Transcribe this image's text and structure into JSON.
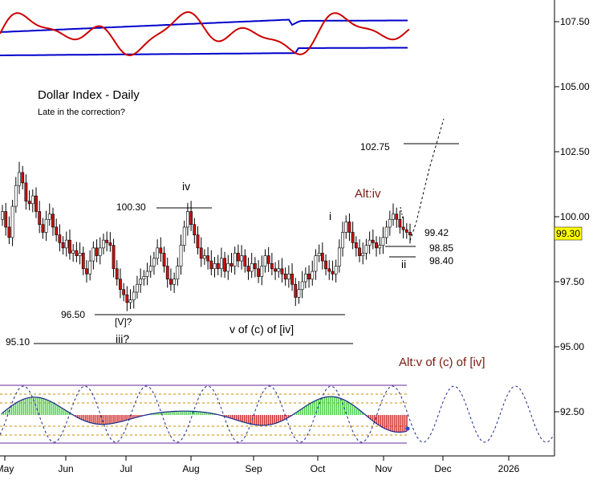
{
  "chart_data": {
    "type": "candlestick",
    "title": "Dollar Index - Daily",
    "subtitle": "Late in the correction?",
    "y_axis": {
      "ticks": [
        92.5,
        95.0,
        97.5,
        100.0,
        102.5,
        105.0,
        107.5
      ],
      "tick_labels": [
        "92.50",
        "95.00",
        "97.50",
        "100.00",
        "102.50",
        "105.00",
        "107.50"
      ],
      "position": "right"
    },
    "x_axis": {
      "tick_labels": [
        "May",
        "Jun",
        "Jul",
        "Aug",
        "Sep",
        "Oct",
        "Nov",
        "Dec",
        "2026"
      ]
    },
    "last_price": {
      "value": 99.3,
      "label": "99.30",
      "color": "#ffff00"
    },
    "closes": [
      100.2,
      99.6,
      99.2,
      100.4,
      101.2,
      101.7,
      101.3,
      100.6,
      100.5,
      100.8,
      100.2,
      99.7,
      99.4,
      99.9,
      100.1,
      99.6,
      99.3,
      99.0,
      98.8,
      99.1,
      98.6,
      98.7,
      98.5,
      98.6,
      98.0,
      97.8,
      98.3,
      98.8,
      98.5,
      98.8,
      99.1,
      99.0,
      98.9,
      98.0,
      97.6,
      97.2,
      97.0,
      96.7,
      96.8,
      97.1,
      97.4,
      97.6,
      97.7,
      97.9,
      98.1,
      98.4,
      98.8,
      98.6,
      98.1,
      97.6,
      97.4,
      97.6,
      98.1,
      98.9,
      99.6,
      100.2,
      99.7,
      99.3,
      98.8,
      98.4,
      98.5,
      98.3,
      98.0,
      98.2,
      98.0,
      98.4,
      97.9,
      98.2,
      98.1,
      98.6,
      98.3,
      98.5,
      98.1,
      97.9,
      98.2,
      98.0,
      97.7,
      98.1,
      98.5,
      98.2,
      98.0,
      97.9,
      98.0,
      97.8,
      97.6,
      97.8,
      97.4,
      96.9,
      97.2,
      97.5,
      97.8,
      97.6,
      97.9,
      98.5,
      98.6,
      98.3,
      98.0,
      97.9,
      97.8,
      98.1,
      98.8,
      99.4,
      99.8,
      99.4,
      99.0,
      98.8,
      98.5,
      98.6,
      98.9,
      99.1,
      99.0,
      98.8,
      98.9,
      99.2,
      99.6,
      99.9,
      100.1,
      99.9,
      99.6,
      99.5,
      99.4,
      99.3
    ],
    "indicator_top": {
      "bands": {
        "upper_color": "#0000cc",
        "lower_color": "#0000cc"
      },
      "oscillator_color": "#cc0000"
    },
    "indicator_bottom": {
      "histogram_pos_color": "#44cc44",
      "histogram_neg_color": "#cc2222",
      "cycle_color": "#000066"
    },
    "annotations": {
      "wave_iv": "iv",
      "level_100_30": "100.30",
      "level_96_50": "96.50",
      "level_95_10": "95.10",
      "wave_v_iii": "[V]?",
      "wave_iii": "iii?",
      "wave_v_c_iv": "v of (c) of [iv]",
      "wave_i": "i",
      "wave_ii": "ii",
      "alt_iv": "Alt:iv",
      "alt_v": "Alt:v of (c) of [iv]",
      "level_102_75": "102.75",
      "level_99_42": "99.42",
      "level_98_85": "98.85",
      "level_98_40": "98.40"
    },
    "grid": false,
    "legend": "none"
  }
}
